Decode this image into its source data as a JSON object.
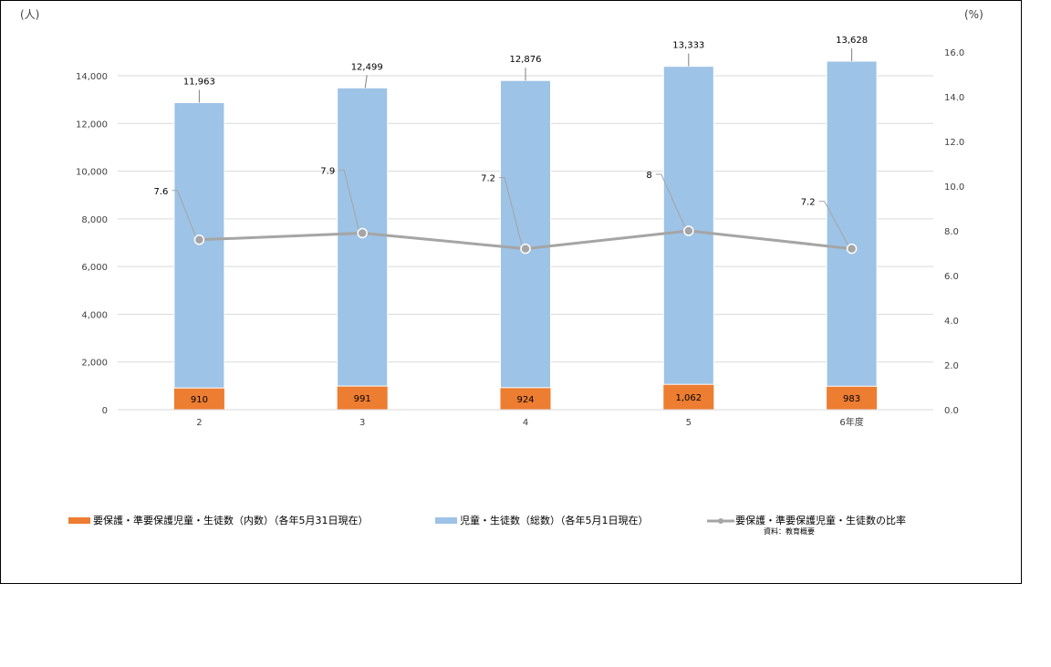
{
  "chart_data": {
    "type": "bar",
    "categories": [
      "2",
      "3",
      "4",
      "5",
      "6年度"
    ],
    "series": [
      {
        "name": "要保護・準要保護児童・生徒数（内数）（各年5月31日現在）",
        "type": "bar",
        "values": [
          910,
          991,
          924,
          1062,
          983
        ],
        "labels": [
          "910",
          "991",
          "924",
          "1,062",
          "983"
        ],
        "color": "#ed7d31"
      },
      {
        "name": "児童・生徒数（総数）（各年5月1日現在）",
        "type": "bar-stacked",
        "values": [
          11963,
          12499,
          12876,
          13333,
          13628
        ],
        "labels": [
          "11,963",
          "12,499",
          "12,876",
          "13,333",
          "13,628"
        ],
        "color": "#9dc3e6"
      },
      {
        "name": "要保護・準要保護児童・生徒数の比率",
        "type": "line",
        "axis": "right",
        "values": [
          7.6,
          7.9,
          7.2,
          8,
          7.2
        ],
        "labels": [
          "7.6",
          "7.9",
          "7.2",
          "8",
          "7.2"
        ],
        "color": "#a5a5a5"
      }
    ],
    "left_axis": {
      "unit": "(人)",
      "ylim": [
        0,
        14000
      ],
      "ticks": [
        "0",
        "2,000",
        "4,000",
        "6,000",
        "8,000",
        "10,000",
        "12,000",
        "14,000"
      ]
    },
    "right_axis": {
      "unit": "(%)",
      "ylim": [
        0,
        16
      ],
      "ticks": [
        "0.0",
        "2.0",
        "4.0",
        "6.0",
        "8.0",
        "10.0",
        "12.0",
        "14.0",
        "16.0"
      ]
    },
    "grid": true,
    "legend_position": "bottom",
    "source_note": "資料：教育概要"
  }
}
